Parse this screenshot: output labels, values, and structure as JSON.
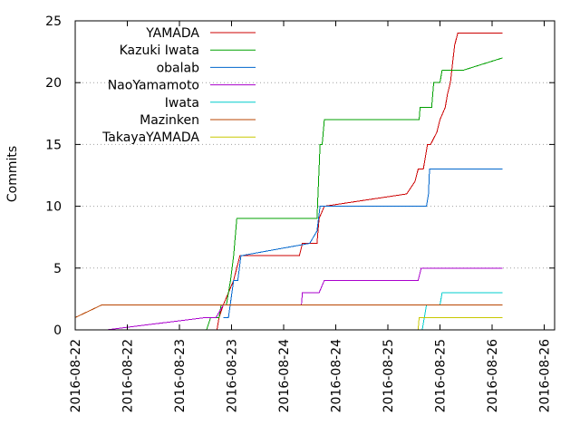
{
  "chart_data": {
    "type": "line",
    "title": "",
    "xlabel": "",
    "ylabel": "Commits",
    "ylim": [
      0,
      25
    ],
    "yticks": [
      0,
      5,
      10,
      15,
      20,
      25
    ],
    "xlim": [
      -0.3,
      4.3
    ],
    "xticks": [
      {
        "value": -0.3,
        "label": "2016-08-22"
      },
      {
        "value": 0.2,
        "label": "2016-08-22"
      },
      {
        "value": 0.7,
        "label": "2016-08-23"
      },
      {
        "value": 1.2,
        "label": "2016-08-23"
      },
      {
        "value": 1.7,
        "label": "2016-08-24"
      },
      {
        "value": 2.2,
        "label": "2016-08-24"
      },
      {
        "value": 2.7,
        "label": "2016-08-25"
      },
      {
        "value": 3.2,
        "label": "2016-08-25"
      },
      {
        "value": 3.7,
        "label": "2016-08-26"
      },
      {
        "value": 4.2,
        "label": "2016-08-26"
      }
    ],
    "x_unit": "days since 2016-08-22 00:00",
    "grid": true,
    "legend_position": "top-right",
    "series": [
      {
        "name": "YAMADA",
        "color": "#cc0000",
        "points": [
          [
            1.06,
            0
          ],
          [
            1.08,
            1
          ],
          [
            1.12,
            2
          ],
          [
            1.22,
            4
          ],
          [
            1.28,
            6
          ],
          [
            1.85,
            6
          ],
          [
            1.88,
            7
          ],
          [
            2.02,
            7
          ],
          [
            2.04,
            9
          ],
          [
            2.09,
            10
          ],
          [
            2.88,
            11
          ],
          [
            2.96,
            12
          ],
          [
            2.99,
            13
          ],
          [
            3.04,
            13
          ],
          [
            3.08,
            15
          ],
          [
            3.11,
            15
          ],
          [
            3.17,
            16
          ],
          [
            3.2,
            17
          ],
          [
            3.25,
            18
          ],
          [
            3.27,
            19
          ],
          [
            3.3,
            20
          ],
          [
            3.34,
            23
          ],
          [
            3.37,
            24
          ],
          [
            3.8,
            24
          ]
        ]
      },
      {
        "name": "Kazuki Iwata",
        "color": "#00a000",
        "points": [
          [
            0.96,
            0
          ],
          [
            1.0,
            1
          ],
          [
            1.08,
            1
          ],
          [
            1.1,
            2
          ],
          [
            1.15,
            2
          ],
          [
            1.19,
            4
          ],
          [
            1.22,
            6
          ],
          [
            1.25,
            9
          ],
          [
            2.02,
            9
          ],
          [
            2.05,
            15
          ],
          [
            2.07,
            15
          ],
          [
            2.09,
            17
          ],
          [
            3.0,
            17
          ],
          [
            3.01,
            18
          ],
          [
            3.12,
            18
          ],
          [
            3.14,
            20
          ],
          [
            3.2,
            20
          ],
          [
            3.22,
            21
          ],
          [
            3.42,
            21
          ],
          [
            3.8,
            22
          ]
        ]
      },
      {
        "name": "obalab",
        "color": "#0066cc",
        "points": [
          [
            1.12,
            1
          ],
          [
            1.17,
            1
          ],
          [
            1.22,
            4
          ],
          [
            1.26,
            4
          ],
          [
            1.29,
            6
          ],
          [
            1.95,
            7
          ],
          [
            2.02,
            8
          ],
          [
            2.05,
            10
          ],
          [
            3.07,
            10
          ],
          [
            3.09,
            11
          ],
          [
            3.1,
            13
          ],
          [
            3.8,
            13
          ]
        ]
      },
      {
        "name": "NaoYamamoto",
        "color": "#aa00cc",
        "points": [
          [
            0.0,
            0
          ],
          [
            0.95,
            1
          ],
          [
            1.05,
            1
          ],
          [
            1.12,
            2
          ],
          [
            1.87,
            2
          ],
          [
            1.88,
            3
          ],
          [
            2.04,
            3
          ],
          [
            2.09,
            4
          ],
          [
            2.99,
            4
          ],
          [
            3.02,
            5
          ],
          [
            3.8,
            5
          ]
        ]
      },
      {
        "name": "Iwata",
        "color": "#00cccc",
        "points": [
          [
            3.03,
            0
          ],
          [
            3.07,
            2
          ],
          [
            3.2,
            2
          ],
          [
            3.22,
            3
          ],
          [
            3.8,
            3
          ]
        ]
      },
      {
        "name": "Mazinken",
        "color": "#b84400",
        "points": [
          [
            -0.3,
            1
          ],
          [
            -0.05,
            2
          ],
          [
            3.8,
            2
          ]
        ]
      },
      {
        "name": "TakayaYAMADA",
        "color": "#c8c800",
        "points": [
          [
            2.99,
            0
          ],
          [
            3.0,
            1
          ],
          [
            3.8,
            1
          ]
        ]
      }
    ]
  }
}
